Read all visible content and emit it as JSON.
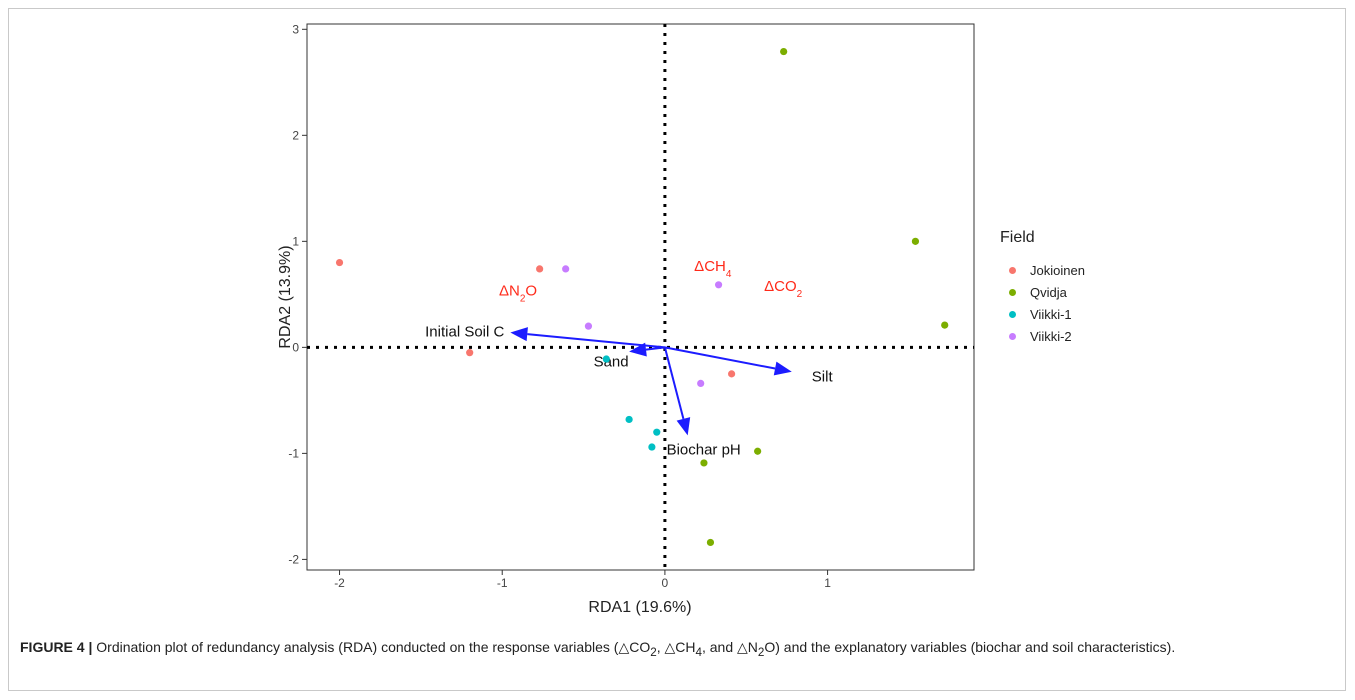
{
  "chart_data": {
    "type": "scatter",
    "xlabel": "RDA1 (19.6%)",
    "ylabel": "RDA2 (13.9%)",
    "xlim": [
      -2.2,
      1.9
    ],
    "ylim": [
      -2.1,
      3.05
    ],
    "xticks": [
      -2,
      -1,
      0,
      1
    ],
    "yticks": [
      -2,
      -1,
      0,
      1,
      2,
      3
    ],
    "grid": false,
    "legend": {
      "title": "Field",
      "position": "right"
    },
    "series": [
      {
        "name": "Jokioinen",
        "color": "#F8766D",
        "points": [
          [
            -2.0,
            0.8
          ],
          [
            -0.77,
            0.74
          ],
          [
            -1.2,
            -0.05
          ],
          [
            0.41,
            -0.25
          ]
        ]
      },
      {
        "name": "Qvidja",
        "color": "#7CAE00",
        "points": [
          [
            0.73,
            2.79
          ],
          [
            1.54,
            1.0
          ],
          [
            1.72,
            0.21
          ],
          [
            0.57,
            -0.98
          ],
          [
            0.24,
            -1.09
          ],
          [
            0.28,
            -1.84
          ]
        ]
      },
      {
        "name": "Viikki-1",
        "color": "#00BFC4",
        "points": [
          [
            -0.36,
            -0.11
          ],
          [
            -0.22,
            -0.68
          ],
          [
            -0.05,
            -0.8
          ],
          [
            -0.08,
            -0.94
          ]
        ]
      },
      {
        "name": "Viikki-2",
        "color": "#C77CFF",
        "points": [
          [
            -0.61,
            0.74
          ],
          [
            0.33,
            0.59
          ],
          [
            -0.47,
            0.2
          ],
          [
            0.22,
            -0.34
          ]
        ]
      }
    ],
    "arrows": [
      {
        "label": "Initial Soil C",
        "x": -0.95,
        "y": 0.14
      },
      {
        "label": "Sand",
        "x": -0.22,
        "y": -0.04
      },
      {
        "label": "Silt",
        "x": 0.78,
        "y": -0.23
      },
      {
        "label": "Biochar pH",
        "x": 0.14,
        "y": -0.83
      }
    ],
    "arrow_color": "#1c1cff",
    "response_color": "#ff2a1a",
    "response_labels": [
      {
        "sub": "2",
        "pre": "ΔCO",
        "post": "",
        "x": 0.61,
        "y": 0.53
      },
      {
        "sub": "4",
        "pre": "ΔCH",
        "post": "",
        "x": 0.18,
        "y": 0.72
      },
      {
        "sub": "2",
        "pre": "ΔN",
        "post": "O",
        "x": -1.02,
        "y": 0.49
      }
    ]
  },
  "caption": {
    "label": "FIGURE 4 |",
    "line1": " Ordination plot of redundancy analysis (RDA) conducted on the response variables (△CO",
    "sub1": "2",
    "mid1": ", △CH",
    "sub2": "4",
    "mid2": ", and △N",
    "sub3": "2",
    "end": "O) and the explanatory variables (biochar and soil characteristics)."
  }
}
